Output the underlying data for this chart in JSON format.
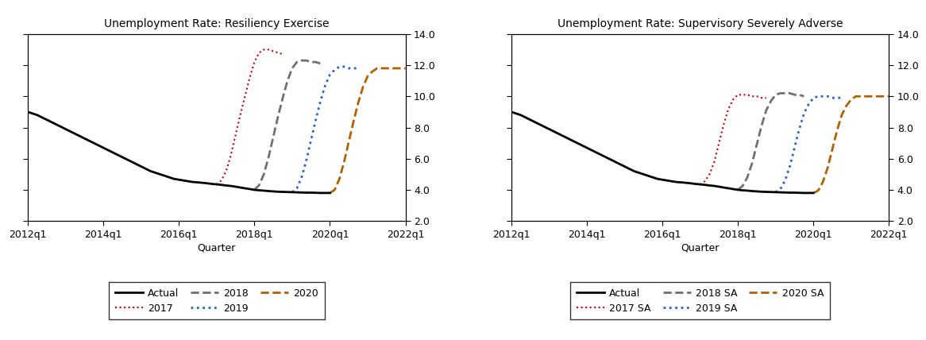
{
  "title_left": "Unemployment Rate: Resiliency Exercise",
  "title_right": "Unemployment Rate: Supervisory Severely Adverse",
  "xlabel": "Quarter",
  "xtick_labels": [
    "2012q1",
    "2014q1",
    "2016q1",
    "2018q1",
    "2020q1",
    "2022q1"
  ],
  "xtick_positions": [
    0,
    8,
    16,
    24,
    32,
    40
  ],
  "ylim": [
    2.0,
    14.0
  ],
  "yticks": [
    2.0,
    4.0,
    6.0,
    8.0,
    10.0,
    12.0,
    14.0
  ],
  "colors": {
    "actual": "#000000",
    "2017": "#cc0000",
    "2018": "#707070",
    "2019": "#2266cc",
    "2020": "#b36000"
  },
  "actual_x": [
    0,
    0.5,
    1,
    1.5,
    2,
    2.5,
    3,
    3.5,
    4,
    4.5,
    5,
    5.5,
    6,
    6.5,
    7,
    7.5,
    8,
    8.5,
    9,
    9.5,
    10,
    10.5,
    11,
    11.5,
    12,
    12.5,
    13,
    13.5,
    14,
    14.5,
    15,
    15.5,
    16,
    16.5,
    17,
    17.5,
    18,
    18.5,
    19,
    19.5,
    20,
    20.5,
    21,
    21.5,
    22,
    22.5,
    23,
    23.5,
    24,
    24.5,
    25,
    25.5,
    26,
    26.5,
    27,
    27.5,
    28,
    28.5,
    29,
    29.5,
    30,
    30.5,
    31,
    31.5,
    32
  ],
  "actual_y": [
    9.0,
    8.9,
    8.8,
    8.65,
    8.5,
    8.35,
    8.2,
    8.05,
    7.9,
    7.75,
    7.6,
    7.45,
    7.3,
    7.15,
    7.0,
    6.85,
    6.7,
    6.55,
    6.4,
    6.25,
    6.1,
    5.95,
    5.8,
    5.65,
    5.5,
    5.35,
    5.2,
    5.1,
    5.0,
    4.9,
    4.8,
    4.7,
    4.65,
    4.6,
    4.55,
    4.5,
    4.48,
    4.45,
    4.42,
    4.38,
    4.35,
    4.32,
    4.28,
    4.25,
    4.2,
    4.15,
    4.1,
    4.05,
    4.0,
    3.97,
    3.95,
    3.92,
    3.9,
    3.88,
    3.87,
    3.86,
    3.85,
    3.84,
    3.83,
    3.82,
    3.82,
    3.81,
    3.8,
    3.8,
    3.8
  ],
  "resil_2017_x": [
    20,
    20.5,
    21,
    21.5,
    22,
    22.5,
    23,
    23.5,
    24,
    24.5,
    25,
    25.5,
    26,
    26.5,
    27
  ],
  "resil_2017_y": [
    4.35,
    4.6,
    5.2,
    6.2,
    7.5,
    8.8,
    10.0,
    11.2,
    12.2,
    12.8,
    13.0,
    13.0,
    12.9,
    12.8,
    12.7
  ],
  "resil_2018_x": [
    24,
    24.5,
    25,
    25.5,
    26,
    26.5,
    27,
    27.5,
    28,
    28.5,
    29,
    29.5,
    30,
    30.5,
    31
  ],
  "resil_2018_y": [
    4.0,
    4.3,
    5.0,
    6.1,
    7.4,
    8.7,
    9.9,
    11.0,
    11.8,
    12.2,
    12.3,
    12.3,
    12.2,
    12.2,
    12.1
  ],
  "resil_2019_x": [
    28,
    28.5,
    29,
    29.5,
    30,
    30.5,
    31,
    31.5,
    32,
    32.5,
    33,
    33.5,
    34,
    34.5,
    35
  ],
  "resil_2019_y": [
    3.85,
    4.1,
    4.8,
    5.9,
    7.2,
    8.5,
    9.7,
    10.7,
    11.4,
    11.7,
    11.9,
    11.9,
    11.8,
    11.8,
    11.8
  ],
  "resil_2020_x": [
    32,
    32.5,
    33,
    33.5,
    34,
    34.5,
    35,
    35.5,
    36,
    36.5,
    37,
    37.5,
    38,
    38.5,
    39,
    39.5,
    40
  ],
  "resil_2020_y": [
    3.8,
    4.0,
    4.7,
    5.8,
    7.1,
    8.4,
    9.6,
    10.6,
    11.3,
    11.6,
    11.8,
    11.8,
    11.8,
    11.8,
    11.8,
    11.8,
    11.8
  ],
  "sa_2017_x": [
    20,
    20.5,
    21,
    21.5,
    22,
    22.5,
    23,
    23.5,
    24,
    24.5,
    25,
    25.5,
    26,
    26.5,
    27
  ],
  "sa_2017_y": [
    4.35,
    4.55,
    5.0,
    5.8,
    7.0,
    8.2,
    9.2,
    9.8,
    10.1,
    10.1,
    10.1,
    10.0,
    10.0,
    9.9,
    9.9
  ],
  "sa_2018_x": [
    24,
    24.5,
    25,
    25.5,
    26,
    26.5,
    27,
    27.5,
    28,
    28.5,
    29,
    29.5,
    30,
    30.5,
    31
  ],
  "sa_2018_y": [
    4.0,
    4.25,
    4.8,
    5.7,
    6.9,
    8.1,
    9.1,
    9.7,
    10.1,
    10.2,
    10.2,
    10.2,
    10.1,
    10.1,
    10.0
  ],
  "sa_2019_x": [
    28,
    28.5,
    29,
    29.5,
    30,
    30.5,
    31,
    31.5,
    32,
    32.5,
    33,
    33.5,
    34,
    34.5,
    35
  ],
  "sa_2019_y": [
    3.85,
    4.05,
    4.6,
    5.5,
    6.7,
    7.9,
    8.9,
    9.5,
    9.9,
    10.0,
    10.0,
    10.0,
    9.9,
    9.9,
    9.9
  ],
  "sa_2020_x": [
    32,
    32.5,
    33,
    33.5,
    34,
    34.5,
    35,
    35.5,
    36,
    36.5,
    37,
    37.5,
    38,
    38.5,
    39,
    39.5,
    40
  ],
  "sa_2020_y": [
    3.8,
    3.95,
    4.5,
    5.4,
    6.6,
    7.8,
    8.8,
    9.4,
    9.8,
    10.0,
    10.0,
    10.0,
    10.0,
    10.0,
    10.0,
    10.0,
    10.0
  ],
  "legend_left": [
    {
      "label": "Actual",
      "color": "#000000",
      "linestyle": "solid",
      "linewidth": 2.0
    },
    {
      "label": "2017",
      "color": "#cc0000",
      "linestyle": "dotted",
      "linewidth": 1.5
    },
    {
      "label": "2018",
      "color": "#707070",
      "linestyle": "dashed",
      "linewidth": 2.0
    },
    {
      "label": "2019",
      "color": "#2266cc",
      "linestyle": "dotted",
      "linewidth": 2.0
    },
    {
      "label": "2020",
      "color": "#b36000",
      "linestyle": "dashed",
      "linewidth": 2.0
    }
  ],
  "legend_right": [
    {
      "label": "Actual",
      "color": "#000000",
      "linestyle": "solid",
      "linewidth": 2.0
    },
    {
      "label": "2017 SA",
      "color": "#cc0000",
      "linestyle": "dotted",
      "linewidth": 1.5
    },
    {
      "label": "2018 SA",
      "color": "#707070",
      "linestyle": "dashed",
      "linewidth": 2.0
    },
    {
      "label": "2019 SA",
      "color": "#2266cc",
      "linestyle": "dotted",
      "linewidth": 2.0
    },
    {
      "label": "2020 SA",
      "color": "#b36000",
      "linestyle": "dashed",
      "linewidth": 2.0
    }
  ]
}
